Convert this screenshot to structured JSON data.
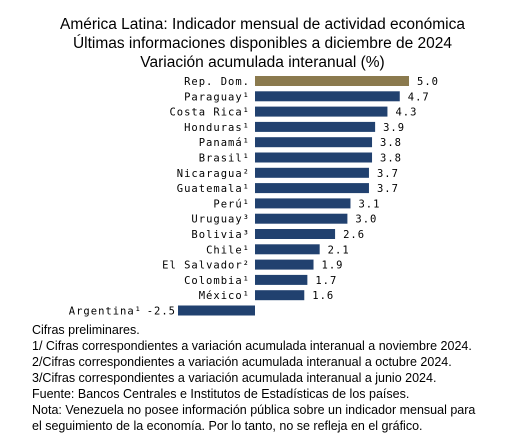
{
  "title_lines": [
    "América Latina: Indicador mensual de actividad económica",
    "Últimas informaciones disponibles a diciembre de 2024",
    "Variación acumulada interanual (%)"
  ],
  "chart_data": {
    "type": "bar",
    "orientation": "horizontal",
    "categories": [
      "Rep. Dom.",
      "Paraguay¹",
      "Costa Rica¹",
      "Honduras¹",
      "Panamá¹",
      "Brasil¹",
      "Nicaragua²",
      "Guatemala¹",
      "Perú¹",
      "Uruguay³",
      "Bolivia³",
      "Chile¹",
      "El Salvador²",
      "Colombia¹",
      "México¹",
      "Argentina¹"
    ],
    "values": [
      5.0,
      4.7,
      4.3,
      3.9,
      3.8,
      3.8,
      3.7,
      3.7,
      3.1,
      3.0,
      2.6,
      2.1,
      1.9,
      1.7,
      1.6,
      -2.5
    ],
    "value_labels": [
      "5.0",
      "4.7",
      "4.3",
      "3.9",
      "3.8",
      "3.8",
      "3.7",
      "3.7",
      "3.1",
      "3.0",
      "2.6",
      "2.1",
      "1.9",
      "1.7",
      "1.6",
      "-2.5"
    ],
    "highlight_category": "Rep. Dom.",
    "colors": {
      "highlight": "#8b7a4e",
      "default": "#21416f"
    },
    "xlim": [
      -2.5,
      5.5
    ],
    "grid": false
  },
  "notes": [
    "Cifras preliminares.",
    "1/ Cifras correspondientes a variación acumulada interanual a noviembre 2024.",
    "2/Cifras correspondientes a variación acumulada interanual a octubre 2024.",
    "3/Cifras correspondientes a variación acumulada interanual a junio 2024.",
    "Fuente: Bancos Centrales e Institutos de Estadísticas de los países.",
    "Nota: Venezuela no posee información pública sobre un indicador mensual para",
    "el seguimiento de la economía. Por lo tanto, no se refleja en el gráfico."
  ]
}
